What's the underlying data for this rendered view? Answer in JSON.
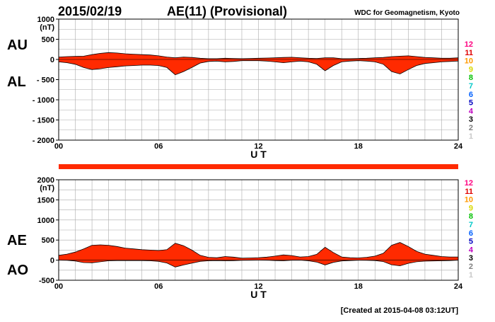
{
  "header": {
    "date": "2015/02/19",
    "title": "AE(11) (Provisional)",
    "source": "WDC for Geomagnetism, Kyoto"
  },
  "footer": {
    "created": "[Created at 2015-04-08 03:12UT]"
  },
  "station_legend": {
    "labels": [
      "12",
      "11",
      "10",
      "9",
      "8",
      "7",
      "6",
      "5",
      "4",
      "3",
      "2",
      "1"
    ],
    "colors": [
      "#ff0080",
      "#e00000",
      "#ff9900",
      "#d8d800",
      "#00c000",
      "#00c8c8",
      "#0060ff",
      "#0000c0",
      "#c000c0",
      "#000000",
      "#808080",
      "#c8c8c8"
    ]
  },
  "separator_bar_color": "#ff2a00",
  "chart_data": [
    {
      "id": "au-al",
      "type": "area",
      "ylabel_top": "AU",
      "ylabel_bottom": "AL",
      "unit": "(nT)",
      "xlabel": "U T",
      "x_ticks": [
        "00",
        "06",
        "12",
        "18",
        "24"
      ],
      "y_ticks": [
        "1000",
        "500",
        "0",
        "- 500",
        "- 1000",
        "- 1500",
        "- 2000"
      ],
      "ylim": [
        -2000,
        1000
      ],
      "xlim": [
        0,
        24
      ],
      "grid": true,
      "fill_color": "#ff2a00",
      "series": [
        {
          "key": "upper",
          "x": [
            0,
            0.5,
            1,
            1.5,
            2,
            2.5,
            3,
            3.5,
            4,
            4.5,
            5,
            5.5,
            6,
            6.5,
            7,
            7.5,
            8,
            8.5,
            9,
            9.5,
            10,
            10.5,
            11,
            11.5,
            12,
            12.5,
            13,
            13.5,
            14,
            14.5,
            15,
            15.5,
            16,
            16.5,
            17,
            17.5,
            18,
            18.5,
            19,
            19.5,
            20,
            20.5,
            21,
            21.5,
            22,
            22.5,
            23,
            23.5,
            24
          ],
          "values": [
            60,
            70,
            75,
            80,
            120,
            150,
            170,
            160,
            140,
            130,
            120,
            110,
            90,
            60,
            40,
            60,
            50,
            30,
            20,
            20,
            30,
            25,
            20,
            25,
            30,
            35,
            40,
            50,
            55,
            40,
            30,
            25,
            40,
            40,
            20,
            20,
            25,
            30,
            40,
            50,
            70,
            80,
            90,
            70,
            50,
            40,
            30,
            30,
            40
          ]
        },
        {
          "key": "lower",
          "x": [
            0,
            0.5,
            1,
            1.5,
            2,
            2.5,
            3,
            3.5,
            4,
            4.5,
            5,
            5.5,
            6,
            6.5,
            7,
            7.5,
            8,
            8.5,
            9,
            9.5,
            10,
            10.5,
            11,
            11.5,
            12,
            12.5,
            13,
            13.5,
            14,
            14.5,
            15,
            15.5,
            16,
            16.5,
            17,
            17.5,
            18,
            18.5,
            19,
            19.5,
            20,
            20.5,
            21,
            21.5,
            22,
            22.5,
            23,
            23.5,
            24
          ],
          "values": [
            -60,
            -80,
            -120,
            -200,
            -250,
            -230,
            -200,
            -180,
            -160,
            -150,
            -140,
            -140,
            -150,
            -200,
            -380,
            -300,
            -200,
            -90,
            -50,
            -40,
            -60,
            -50,
            -30,
            -30,
            -30,
            -40,
            -60,
            -80,
            -60,
            -40,
            -60,
            -120,
            -280,
            -150,
            -60,
            -40,
            -30,
            -40,
            -60,
            -120,
            -300,
            -360,
            -250,
            -150,
            -100,
            -80,
            -60,
            -50,
            -40
          ]
        }
      ]
    },
    {
      "id": "ae-ao",
      "type": "area",
      "ylabel_top": "AE",
      "ylabel_bottom": "AO",
      "unit": "(nT)",
      "xlabel": "U T",
      "x_ticks": [
        "00",
        "06",
        "12",
        "18",
        "24"
      ],
      "y_ticks": [
        "2000",
        "1500",
        "1000",
        "500",
        "0",
        "-500"
      ],
      "ylim": [
        -500,
        2000
      ],
      "xlim": [
        0,
        24
      ],
      "grid": true,
      "fill_color": "#ff2a00",
      "series": [
        {
          "key": "AE",
          "x": [
            0,
            0.5,
            1,
            1.5,
            2,
            2.5,
            3,
            3.5,
            4,
            4.5,
            5,
            5.5,
            6,
            6.5,
            7,
            7.5,
            8,
            8.5,
            9,
            9.5,
            10,
            10.5,
            11,
            11.5,
            12,
            12.5,
            13,
            13.5,
            14,
            14.5,
            15,
            15.5,
            16,
            16.5,
            17,
            17.5,
            18,
            18.5,
            19,
            19.5,
            20,
            20.5,
            21,
            21.5,
            22,
            22.5,
            23,
            23.5,
            24
          ],
          "values": [
            120,
            150,
            200,
            280,
            370,
            380,
            370,
            340,
            300,
            280,
            260,
            250,
            240,
            260,
            420,
            360,
            250,
            120,
            70,
            60,
            90,
            75,
            50,
            55,
            60,
            75,
            100,
            130,
            115,
            80,
            90,
            145,
            320,
            190,
            80,
            60,
            55,
            70,
            100,
            170,
            370,
            440,
            340,
            220,
            150,
            120,
            90,
            80,
            80
          ]
        },
        {
          "key": "AO",
          "x": [
            0,
            0.5,
            1,
            1.5,
            2,
            2.5,
            3,
            3.5,
            4,
            4.5,
            5,
            5.5,
            6,
            6.5,
            7,
            7.5,
            8,
            8.5,
            9,
            9.5,
            10,
            10.5,
            11,
            11.5,
            12,
            12.5,
            13,
            13.5,
            14,
            14.5,
            15,
            15.5,
            16,
            16.5,
            17,
            17.5,
            18,
            18.5,
            19,
            19.5,
            20,
            20.5,
            21,
            21.5,
            22,
            22.5,
            23,
            23.5,
            24
          ],
          "values": [
            0,
            -5,
            -22,
            -60,
            -65,
            -40,
            -15,
            -10,
            -10,
            -10,
            -10,
            -15,
            -30,
            -70,
            -170,
            -120,
            -75,
            -30,
            -15,
            -10,
            -15,
            -12,
            -5,
            -2,
            0,
            -2,
            -10,
            -15,
            -2,
            0,
            -15,
            -47,
            -120,
            -55,
            -20,
            -10,
            -2,
            -5,
            -10,
            -35,
            -115,
            -140,
            -80,
            -40,
            -25,
            -20,
            -15,
            -10,
            0
          ]
        }
      ]
    }
  ]
}
